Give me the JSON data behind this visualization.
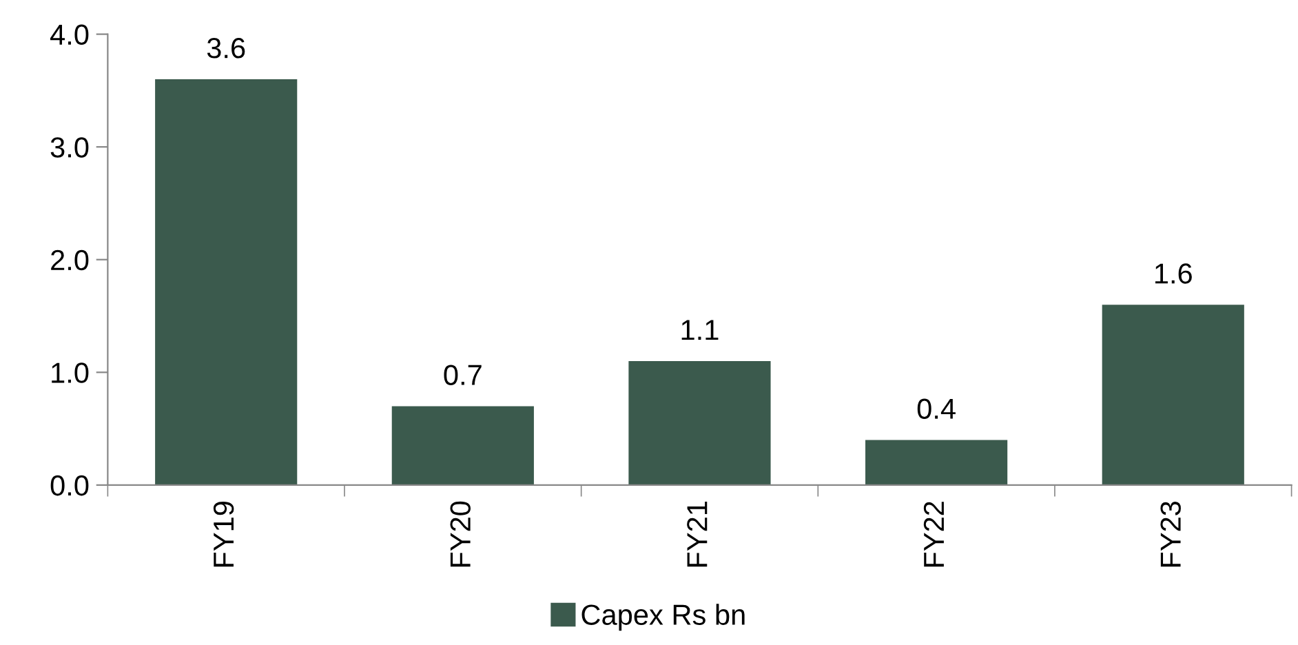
{
  "chart_data": {
    "type": "bar",
    "categories": [
      "FY19",
      "FY20",
      "FY21",
      "FY22",
      "FY23"
    ],
    "series": [
      {
        "name": "Capex Rs bn",
        "color": "#3b5a4d",
        "values": [
          3.6,
          0.7,
          1.1,
          0.4,
          1.6
        ]
      }
    ],
    "ylim": [
      0,
      4
    ],
    "yticks": [
      {
        "value": 0,
        "label": "0.0"
      },
      {
        "value": 1,
        "label": "1.0"
      },
      {
        "value": 2,
        "label": "2.0"
      },
      {
        "value": 3,
        "label": "3.0"
      },
      {
        "value": 4,
        "label": "4.0"
      }
    ],
    "data_labels": true,
    "grid": false,
    "legend": "bottom"
  }
}
